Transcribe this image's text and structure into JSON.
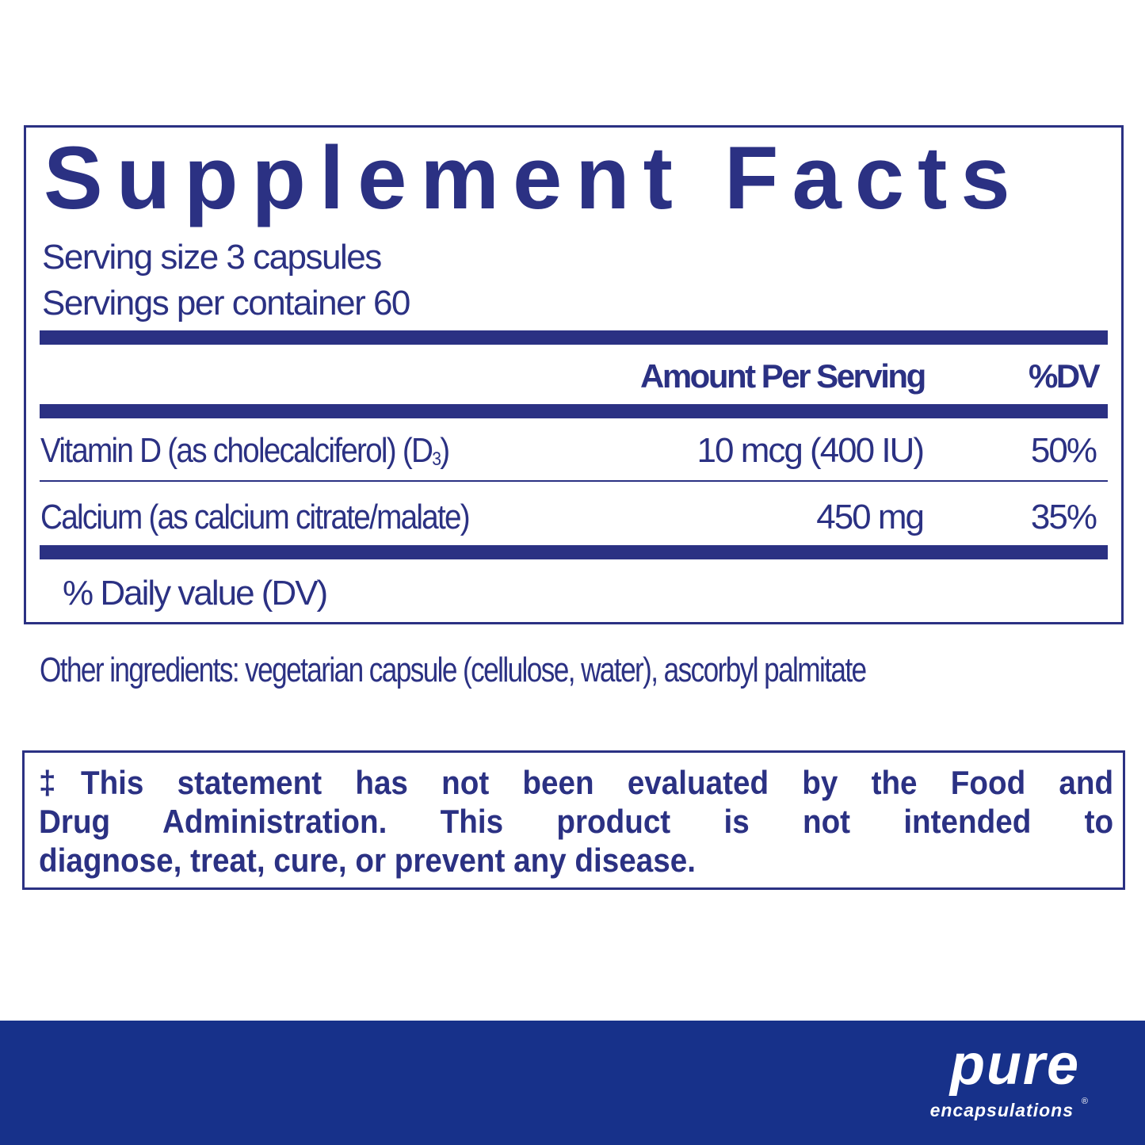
{
  "facts": {
    "title": "Supplement Facts",
    "serving_size": "Serving size  3 capsules",
    "servings_per_container": "Servings per container  60",
    "header_amount": "Amount Per Serving",
    "header_dv": "%DV",
    "rows": [
      {
        "name": "Vitamin D (as cholecalciferol) (D",
        "subscript": "3",
        "name_end": ")",
        "amount": "10 mcg (400 IU)",
        "dv": "50%"
      },
      {
        "name": "Calcium (as calcium citrate/malate)",
        "amount": "450 mg",
        "dv": "35%"
      }
    ],
    "footnote": "% Daily value (DV)"
  },
  "other_ingredients": "Other ingredients:  vegetarian capsule (cellulose, water), ascorbyl palmitate",
  "disclaimer": {
    "lines": [
      "‡This statement has not been evaluated by the Food and",
      "Drug Administration. This product is not intended to",
      "diagnose, treat, cure, or prevent any disease."
    ]
  },
  "brand": {
    "name": "pure",
    "subname": "encapsulations",
    "registered": "®",
    "band_color": "#17318a",
    "text_color": "#2b3183"
  }
}
